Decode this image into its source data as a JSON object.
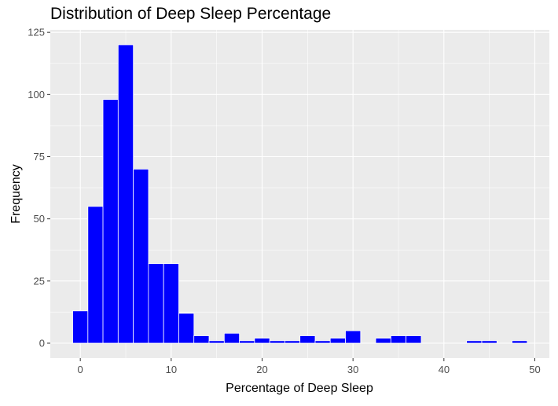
{
  "chart_data": {
    "type": "bar",
    "title": "Distribution of Deep Sleep Percentage",
    "xlabel": "Percentage of Deep Sleep",
    "ylabel": "Frequency",
    "bar_color": "#0000ff",
    "bar_outline": "#ffffff",
    "panel_color": "#ebebeb",
    "grid": true,
    "legend": "none",
    "xlim": [
      -3.3,
      51.6
    ],
    "ylim": [
      -6,
      126
    ],
    "x_ticks": [
      0,
      10,
      20,
      30,
      40,
      50
    ],
    "y_ticks": [
      0,
      25,
      50,
      75,
      100,
      125
    ],
    "bin_width": 1.67,
    "bin_centers": [
      0,
      1.67,
      3.33,
      5,
      6.67,
      8.33,
      10,
      11.67,
      13.33,
      15,
      16.67,
      18.33,
      20,
      21.67,
      23.33,
      25,
      26.67,
      28.33,
      30,
      31.67,
      33.33,
      35,
      36.67,
      38.33,
      40,
      41.67,
      43.33,
      45,
      46.67,
      48.33
    ],
    "values": [
      13,
      55,
      98,
      120,
      70,
      32,
      32,
      12,
      3,
      1,
      4,
      1,
      2,
      1,
      1,
      3,
      1,
      2,
      5,
      0,
      2,
      3,
      3,
      0,
      0,
      0,
      1,
      1,
      0,
      1
    ]
  }
}
